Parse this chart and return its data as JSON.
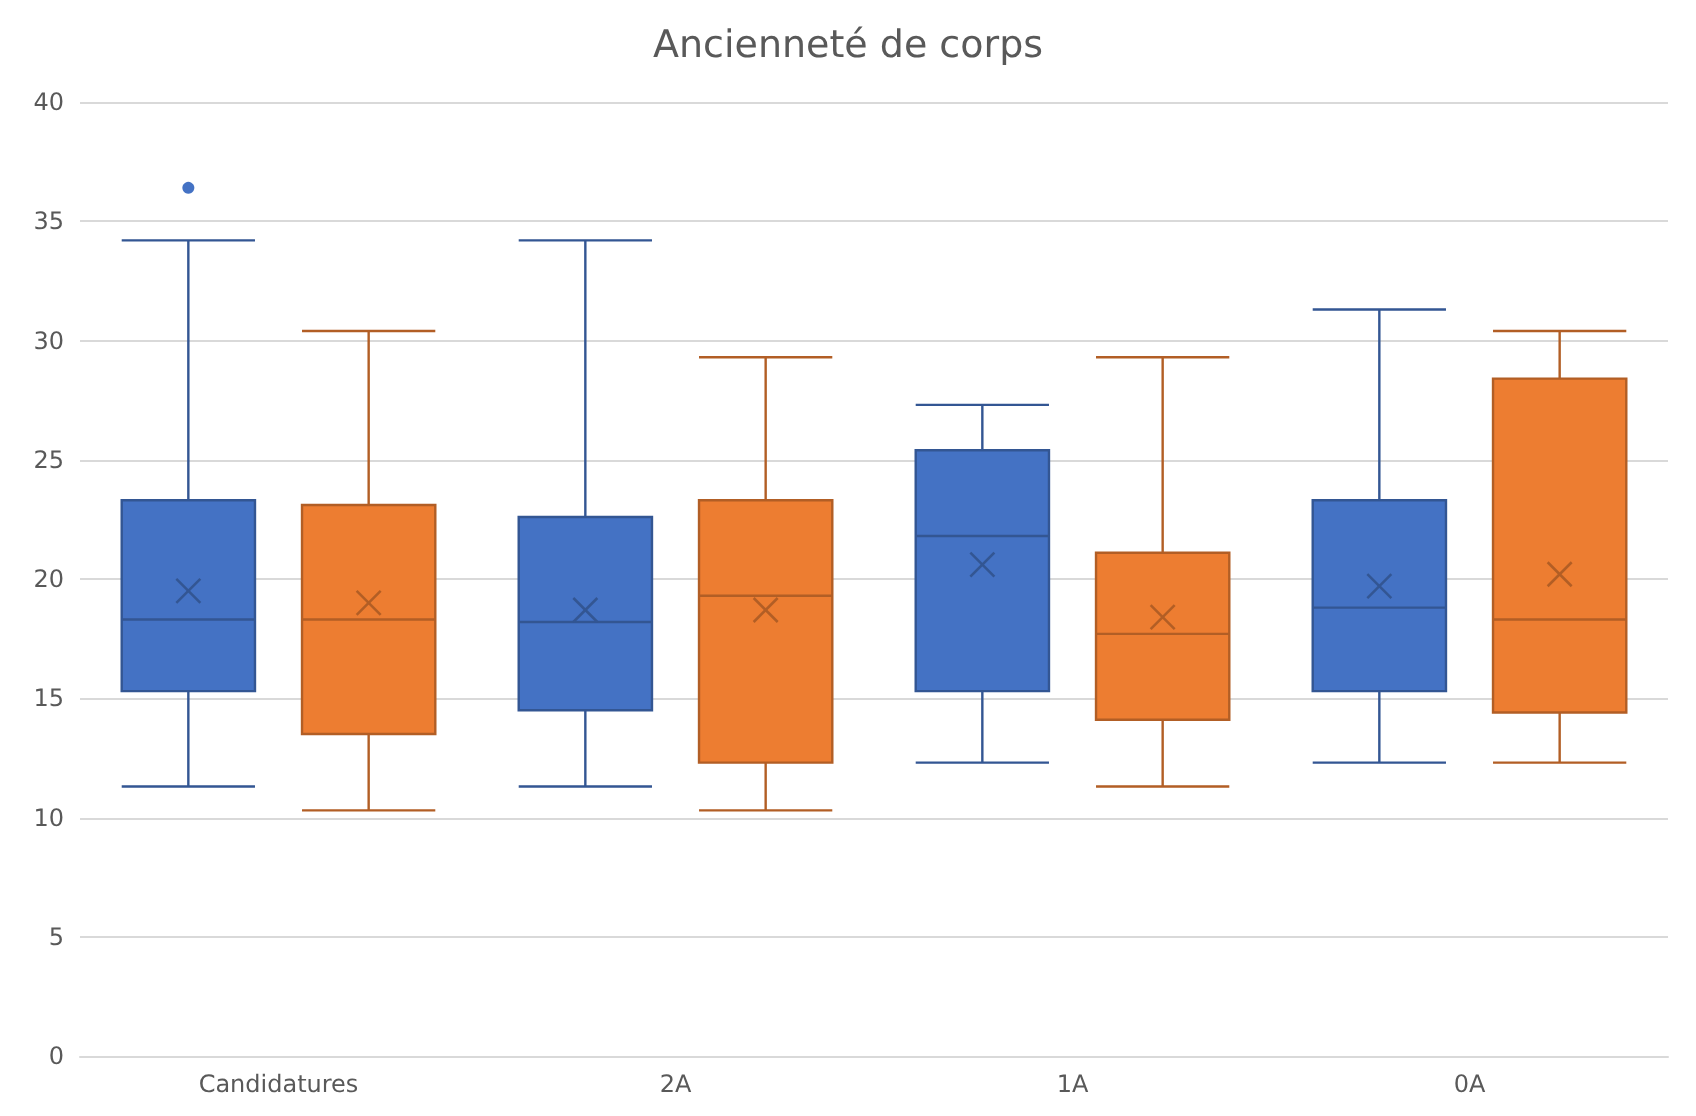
{
  "chart_data": {
    "type": "box",
    "title": "Ancienneté de corps",
    "categories": [
      "Candidatures",
      "2A",
      "1A",
      "0A"
    ],
    "ylim": [
      0,
      40
    ],
    "yticks": [
      0,
      5,
      10,
      15,
      20,
      25,
      30,
      35,
      40
    ],
    "grid": "y",
    "marker": "cross",
    "series": [
      {
        "color": "#4472c4",
        "boxes": [
          {
            "low": 11.3,
            "q1": 15.3,
            "median": 18.3,
            "q3": 23.3,
            "high": 34.2,
            "mean": 19.5,
            "outliers": [
              36.4
            ]
          },
          {
            "low": 11.3,
            "q1": 14.5,
            "median": 18.2,
            "q3": 22.6,
            "high": 34.2,
            "mean": 18.7
          },
          {
            "low": 12.3,
            "q1": 15.3,
            "median": 21.8,
            "q3": 25.4,
            "high": 27.3,
            "mean": 20.6
          },
          {
            "low": 12.3,
            "q1": 15.3,
            "median": 18.8,
            "q3": 23.3,
            "high": 31.3,
            "mean": 19.7
          }
        ]
      },
      {
        "color": "#ed7d31",
        "boxes": [
          {
            "low": 10.3,
            "q1": 13.5,
            "median": 18.3,
            "q3": 23.1,
            "high": 30.4,
            "mean": 19.0
          },
          {
            "low": 10.3,
            "q1": 12.3,
            "median": 19.3,
            "q3": 23.3,
            "high": 29.3,
            "mean": 18.7
          },
          {
            "low": 11.3,
            "q1": 14.1,
            "median": 17.7,
            "q3": 21.1,
            "high": 29.3,
            "mean": 18.4
          },
          {
            "low": 12.3,
            "q1": 14.4,
            "median": 18.3,
            "q3": 28.4,
            "high": 30.4,
            "mean": 20.2
          }
        ]
      }
    ]
  }
}
